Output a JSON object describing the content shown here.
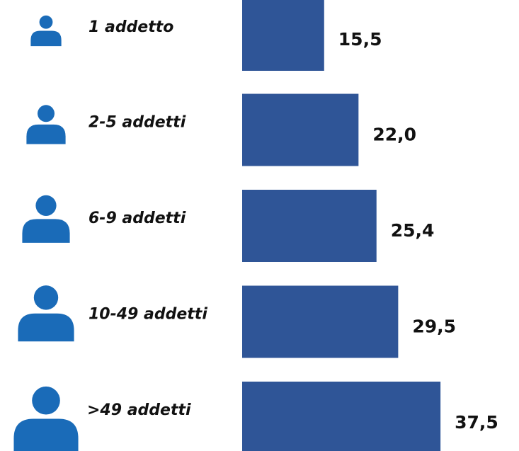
{
  "chart_data": {
    "type": "bar",
    "categories": [
      "1 addetto",
      "2-5 addetti",
      "6-9 addetti",
      "10-49 addetti",
      ">49 addetti"
    ],
    "values": [
      15.5,
      22.0,
      25.4,
      29.5,
      37.5
    ],
    "value_labels": [
      "15,5",
      "22,0",
      "25,4",
      "29,5",
      "37,5"
    ],
    "color": "#2f5597",
    "icon_color": "#1a6bb8"
  }
}
